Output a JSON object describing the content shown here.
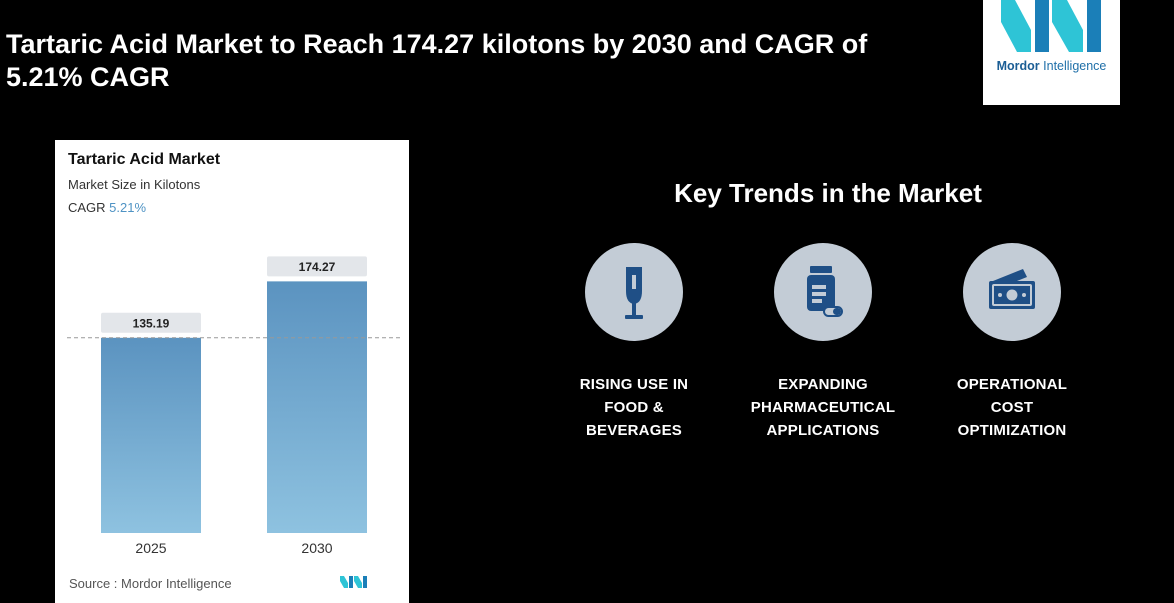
{
  "header": {
    "title": "Tartaric Acid Market to Reach 174.27 kilotons by 2030 and CAGR of 5.21% CAGR"
  },
  "logo": {
    "brand_bold": "Mordor",
    "brand_light": " Intelligence",
    "colors": {
      "teal": "#2ec4d6",
      "blue": "#1b5e95"
    }
  },
  "card": {
    "title": "Tartaric Acid Market",
    "subtitle": "Market Size in Kilotons",
    "cagr_label": "CAGR ",
    "cagr_value": "5.21%",
    "source_label": "Source : ",
    "source_value": "Mordor Intelligence"
  },
  "chart_data": {
    "type": "bar",
    "title": "Tartaric Acid Market",
    "ylabel": "Market Size in Kilotons",
    "categories": [
      "2025",
      "2030"
    ],
    "values": [
      135.19,
      174.27
    ],
    "data_labels": [
      "135.19",
      "174.27"
    ],
    "ylim": [
      0,
      196
    ],
    "reference_line": 135.19,
    "bar_color": "#5b93c0",
    "grid": false
  },
  "trends": {
    "title": "Key Trends in the Market",
    "items": [
      {
        "icon": "wine-glass-icon",
        "lines": [
          "RISING USE IN",
          "FOOD &",
          "BEVERAGES"
        ]
      },
      {
        "icon": "pill-bottle-icon",
        "lines": [
          "EXPANDING",
          "PHARMACEUTICAL",
          "APPLICATIONS"
        ]
      },
      {
        "icon": "cash-icon",
        "lines": [
          "OPERATIONAL",
          "COST",
          "OPTIMIZATION"
        ]
      }
    ],
    "circle_color": "#c3ccd6",
    "icon_color": "#1f4f86"
  }
}
